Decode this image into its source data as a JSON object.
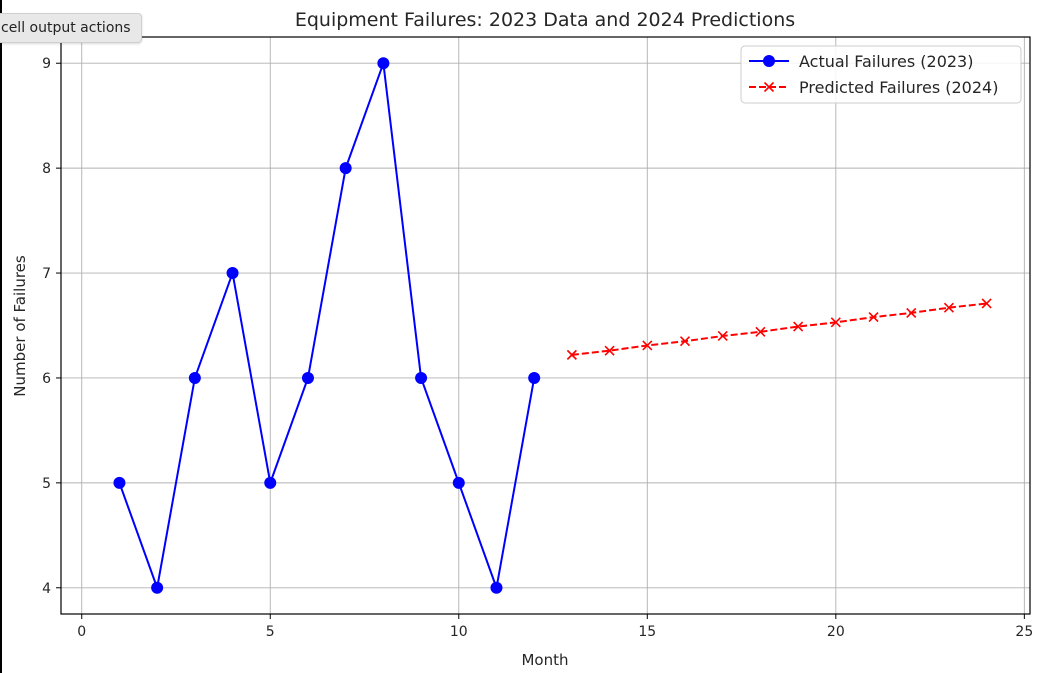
{
  "toolbar": {
    "cell_output_label": "cell output actions"
  },
  "chart_data": {
    "type": "line",
    "title": "Equipment Failures: 2023 Data and 2024 Predictions",
    "xlabel": "Month",
    "ylabel": "Number of Failures",
    "xlim": [
      -0.55,
      25.15
    ],
    "ylim": [
      3.75,
      9.25
    ],
    "xticks": [
      0,
      5,
      10,
      15,
      20,
      25
    ],
    "yticks": [
      4,
      5,
      6,
      7,
      8,
      9
    ],
    "grid": true,
    "legend_position": "top-right",
    "series": [
      {
        "name": "Actual Failures (2023)",
        "color": "#0000ff",
        "marker": "circle",
        "linestyle": "solid",
        "x": [
          1,
          2,
          3,
          4,
          5,
          6,
          7,
          8,
          9,
          10,
          11,
          12
        ],
        "y": [
          5,
          4,
          6,
          7,
          5,
          6,
          8,
          9,
          6,
          5,
          4,
          6
        ]
      },
      {
        "name": "Predicted Failures (2024)",
        "color": "#ff0000",
        "marker": "x",
        "linestyle": "dashed",
        "x": [
          13,
          14,
          15,
          16,
          17,
          18,
          19,
          20,
          21,
          22,
          23,
          24
        ],
        "y": [
          6.22,
          6.26,
          6.31,
          6.35,
          6.4,
          6.44,
          6.49,
          6.53,
          6.58,
          6.62,
          6.67,
          6.71
        ]
      }
    ]
  }
}
